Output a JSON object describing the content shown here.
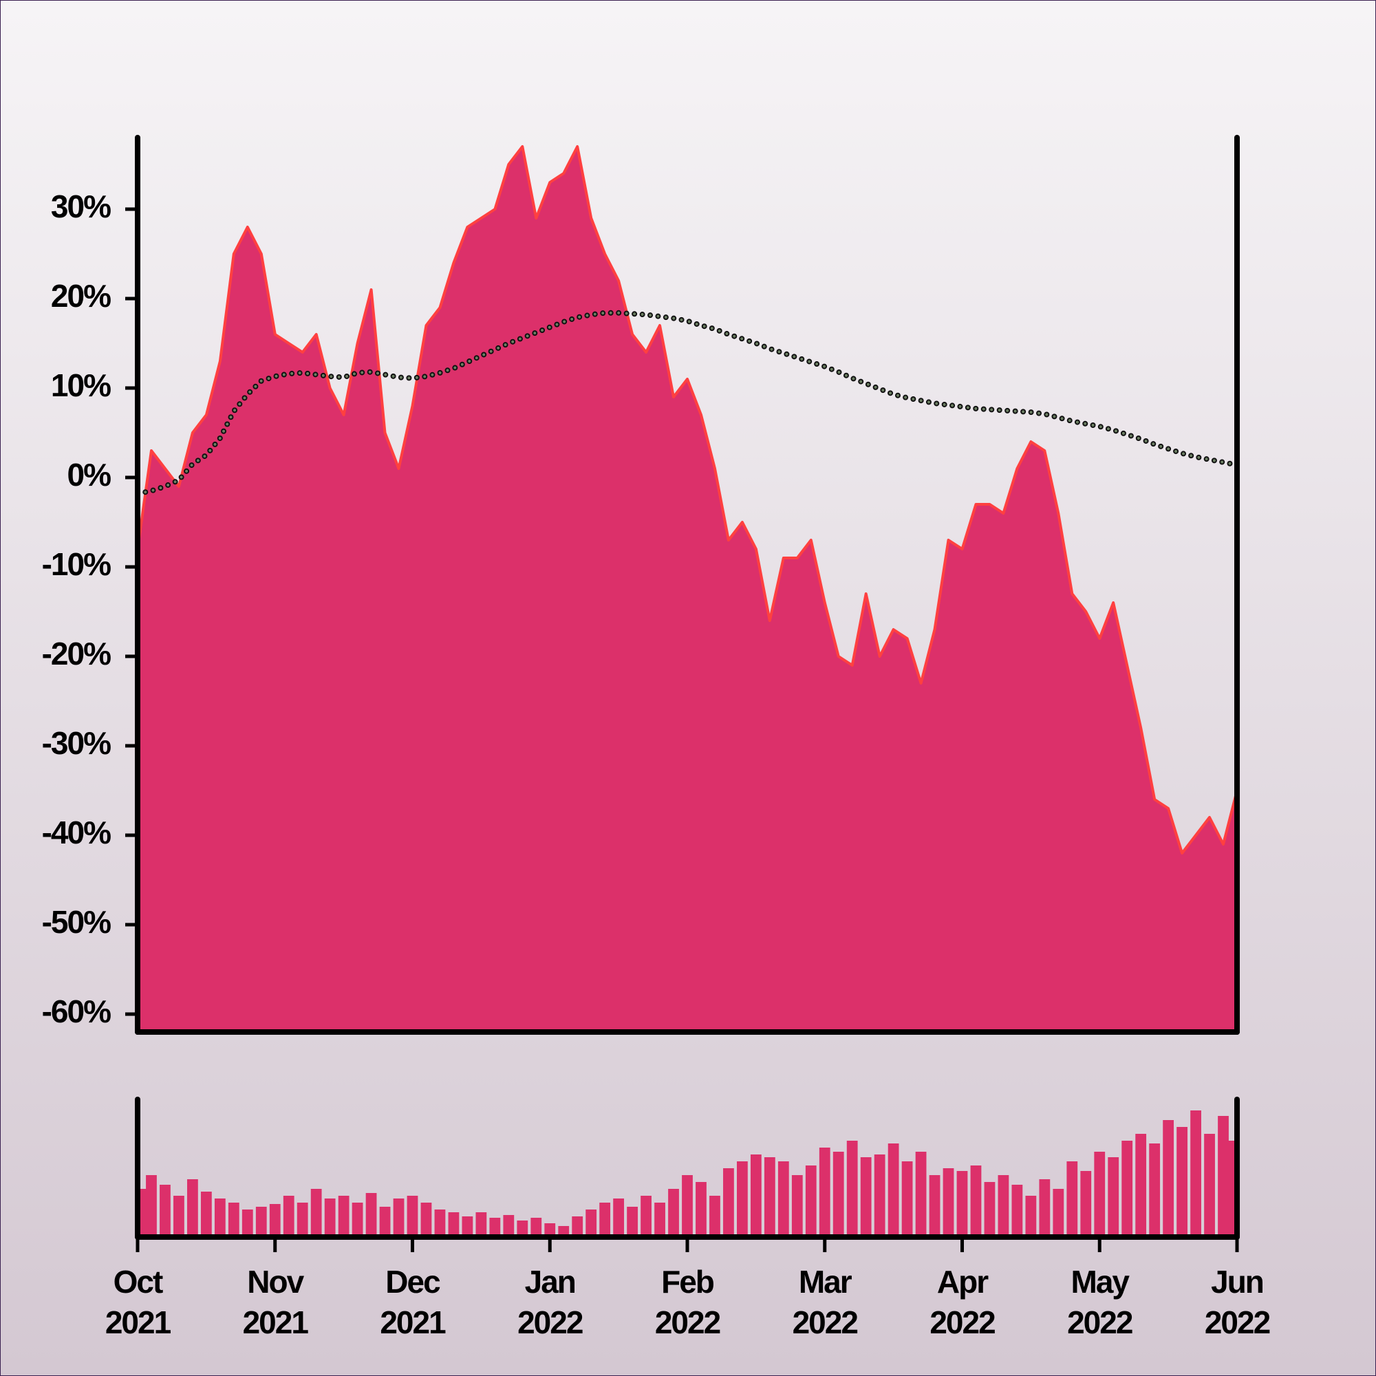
{
  "chart_data": [
    {
      "type": "area",
      "x": [
        0,
        0.1,
        0.2,
        0.3,
        0.4,
        0.5,
        0.6,
        0.7,
        0.8,
        0.9,
        1,
        1.1,
        1.2,
        1.3,
        1.4,
        1.5,
        1.6,
        1.7,
        1.8,
        1.9,
        2,
        2.1,
        2.2,
        2.3,
        2.4,
        2.5,
        2.6,
        2.7,
        2.8,
        2.9,
        3,
        3.1,
        3.2,
        3.3,
        3.4,
        3.5,
        3.6,
        3.7,
        3.8,
        3.9,
        4,
        4.1,
        4.2,
        4.3,
        4.4,
        4.5,
        4.6,
        4.7,
        4.8,
        4.9,
        5,
        5.1,
        5.2,
        5.3,
        5.4,
        5.5,
        5.6,
        5.7,
        5.8,
        5.9,
        6,
        6.1,
        6.2,
        6.3,
        6.4,
        6.5,
        6.6,
        6.7,
        6.8,
        6.9,
        7,
        7.1,
        7.2,
        7.3,
        7.4,
        7.5,
        7.6,
        7.7,
        7.8,
        7.9,
        8
      ],
      "series": [
        {
          "type": "area",
          "color": "#dc306a",
          "line_color": "#ff4040",
          "values": [
            -8,
            3,
            1,
            -1,
            5,
            7,
            13,
            25,
            28,
            25,
            16,
            15,
            14,
            16,
            10,
            7,
            15,
            21,
            5,
            1,
            8,
            17,
            19,
            24,
            28,
            29,
            30,
            35,
            37,
            29,
            33,
            34,
            37,
            29,
            25,
            22,
            16,
            14,
            17,
            9,
            11,
            7,
            1,
            -7,
            -5,
            -8,
            -16,
            -9,
            -9,
            -7,
            -14,
            -20,
            -21,
            -13,
            -20,
            -17,
            -18,
            -23,
            -17,
            -7,
            -8,
            -3,
            -3,
            -4,
            1,
            4,
            3,
            -4,
            -13,
            -15,
            -18,
            -14,
            -21,
            -28,
            -36,
            -37,
            -42,
            -40,
            -38,
            -41,
            -35
          ]
        },
        {
          "type": "line",
          "style": "dotted",
          "color": "#6b7f62",
          "values": [
            -1.8,
            -1.5,
            -1,
            -0.3,
            1.5,
            2.5,
            4.4,
            7.4,
            9.3,
            10.8,
            11.3,
            11.6,
            11.7,
            11.5,
            11.3,
            11.2,
            11.7,
            11.8,
            11.5,
            11.2,
            11.1,
            11.3,
            11.7,
            12.2,
            12.9,
            13.6,
            14.3,
            15,
            15.6,
            16.2,
            16.8,
            17.4,
            17.9,
            18.2,
            18.4,
            18.4,
            18.3,
            18.2,
            18,
            17.8,
            17.5,
            17,
            16.6,
            16,
            15.5,
            15,
            14.4,
            13.9,
            13.4,
            12.9,
            12.4,
            11.8,
            11.1,
            10.5,
            9.9,
            9.3,
            8.9,
            8.6,
            8.3,
            8.1,
            7.9,
            7.7,
            7.6,
            7.5,
            7.4,
            7.3,
            7.1,
            6.7,
            6.3,
            6,
            5.7,
            5.3,
            4.8,
            4.3,
            3.7,
            3.2,
            2.7,
            2.3,
            2,
            1.7,
            1.4
          ]
        }
      ],
      "xlim": [
        0,
        8
      ],
      "ylim": [
        -62,
        38
      ],
      "yticks": [
        {
          "value": -60,
          "label": "-60%"
        },
        {
          "value": -50,
          "label": "-50%"
        },
        {
          "value": -40,
          "label": "-40%"
        },
        {
          "value": -30,
          "label": "-30%"
        },
        {
          "value": -20,
          "label": "-20%"
        },
        {
          "value": -10,
          "label": "-10%"
        },
        {
          "value": 0,
          "label": "0%"
        },
        {
          "value": 10,
          "label": "10%"
        },
        {
          "value": 20,
          "label": "20%"
        },
        {
          "value": 30,
          "label": "30%"
        }
      ]
    },
    {
      "type": "bar",
      "x": [
        0,
        0.1,
        0.2,
        0.3,
        0.4,
        0.5,
        0.6,
        0.7,
        0.8,
        0.9,
        1,
        1.1,
        1.2,
        1.3,
        1.4,
        1.5,
        1.6,
        1.7,
        1.8,
        1.9,
        2,
        2.1,
        2.2,
        2.3,
        2.4,
        2.5,
        2.6,
        2.7,
        2.8,
        2.9,
        3,
        3.1,
        3.2,
        3.3,
        3.4,
        3.5,
        3.6,
        3.7,
        3.8,
        3.9,
        4,
        4.1,
        4.2,
        4.3,
        4.4,
        4.5,
        4.6,
        4.7,
        4.8,
        4.9,
        5,
        5.1,
        5.2,
        5.3,
        5.4,
        5.5,
        5.6,
        5.7,
        5.8,
        5.9,
        6,
        6.1,
        6.2,
        6.3,
        6.4,
        6.5,
        6.6,
        6.7,
        6.8,
        6.9,
        7,
        7.1,
        7.2,
        7.3,
        7.4,
        7.5,
        7.6,
        7.7,
        7.8,
        7.9,
        8
      ],
      "values": [
        35,
        45,
        38,
        30,
        42,
        33,
        28,
        25,
        20,
        22,
        24,
        30,
        25,
        35,
        28,
        30,
        25,
        32,
        22,
        28,
        30,
        25,
        20,
        18,
        15,
        18,
        14,
        16,
        12,
        14,
        10,
        8,
        15,
        20,
        25,
        28,
        22,
        30,
        25,
        35,
        45,
        40,
        30,
        50,
        55,
        60,
        58,
        55,
        45,
        52,
        65,
        62,
        70,
        58,
        60,
        68,
        55,
        62,
        45,
        50,
        48,
        52,
        40,
        45,
        38,
        30,
        42,
        35,
        55,
        48,
        62,
        58,
        70,
        75,
        68,
        85,
        80,
        92,
        75,
        88,
        70
      ],
      "color": "#dc306a",
      "xlim": [
        0,
        8
      ],
      "ylim": [
        0,
        100
      ],
      "xticks": [
        {
          "value": 0,
          "label": "Oct 2021"
        },
        {
          "value": 1,
          "label": "Nov 2021"
        },
        {
          "value": 2,
          "label": "Dec 2021"
        },
        {
          "value": 3,
          "label": "Jan 2022"
        },
        {
          "value": 4,
          "label": "Feb 2022"
        },
        {
          "value": 5,
          "label": "Mar 2022"
        },
        {
          "value": 6,
          "label": "Apr 2022"
        },
        {
          "value": 7,
          "label": "May 2022"
        },
        {
          "value": 8,
          "label": "Jun 2022"
        }
      ]
    }
  ]
}
